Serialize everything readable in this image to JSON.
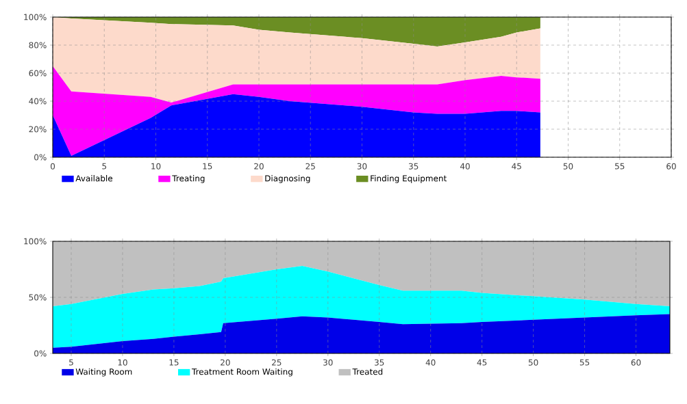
{
  "chart_data": [
    {
      "type": "area",
      "stacked": true,
      "x": [
        0,
        1.8,
        9.5,
        11.5,
        17.5,
        20,
        23,
        30,
        35,
        37.3,
        40,
        43.5,
        45,
        47.3
      ],
      "xlim": [
        0,
        60
      ],
      "xticks": [
        0,
        5,
        10,
        15,
        20,
        25,
        30,
        35,
        40,
        45,
        50,
        55,
        60
      ],
      "ylim": [
        0,
        100
      ],
      "yticks": [
        {
          "value": 0,
          "label": "0%"
        },
        {
          "value": 20,
          "label": "20%"
        },
        {
          "value": 40,
          "label": "40%"
        },
        {
          "value": 60,
          "label": "60%"
        },
        {
          "value": 80,
          "label": "80%"
        },
        {
          "value": 100,
          "label": "100%"
        }
      ],
      "grid": true,
      "legend": "bottom",
      "series": [
        {
          "name": "Available",
          "color": "#0000ff",
          "values": [
            30,
            1,
            28,
            37,
            45,
            43,
            40,
            36,
            32,
            31,
            31,
            33,
            33,
            32
          ]
        },
        {
          "name": "Treating",
          "color": "#ff00ff",
          "values": [
            35,
            46,
            15,
            2,
            7,
            9,
            12,
            16,
            20,
            21,
            24,
            25,
            24,
            24
          ]
        },
        {
          "name": "Diagnosing",
          "color": "#fddacb",
          "values": [
            35,
            52,
            53,
            56,
            42,
            39,
            37,
            33,
            29,
            27,
            27,
            28,
            32,
            36
          ]
        },
        {
          "name": "Finding Equipment",
          "color": "#6b8e23",
          "values": [
            0,
            1,
            4,
            5,
            6,
            9,
            11,
            15,
            19,
            21,
            18,
            14,
            11,
            8
          ]
        }
      ]
    },
    {
      "type": "area",
      "stacked": true,
      "x": [
        3.2,
        5,
        10,
        13,
        15,
        17.5,
        19.6,
        19.8,
        25,
        27.5,
        30,
        35,
        37.3,
        43,
        45,
        50,
        55,
        60,
        63.3
      ],
      "xlim": [
        3.2,
        63.3
      ],
      "xticks": [
        5,
        10,
        15,
        20,
        25,
        30,
        35,
        40,
        45,
        50,
        55,
        60
      ],
      "ylim": [
        0,
        100
      ],
      "yticks": [
        {
          "value": 0,
          "label": "0%"
        },
        {
          "value": 50,
          "label": "50%"
        },
        {
          "value": 100,
          "label": "100%"
        }
      ],
      "grid": true,
      "legend": "bottom",
      "series": [
        {
          "name": "Waiting Room",
          "color": "#0000e8",
          "values": [
            5,
            6,
            11,
            13,
            15,
            17,
            19,
            27,
            31,
            33,
            32,
            28,
            26,
            27,
            28,
            30,
            32,
            34,
            35
          ]
        },
        {
          "name": "Treatment Room Waiting",
          "color": "#00ffff",
          "values": [
            37,
            38,
            42,
            44,
            43,
            43,
            45,
            40,
            44,
            45,
            41,
            33,
            30,
            29,
            26,
            21,
            16,
            10,
            7
          ]
        },
        {
          "name": "Treated",
          "color": "#c0c0c0",
          "values": [
            58,
            56,
            47,
            43,
            42,
            40,
            36,
            33,
            25,
            22,
            27,
            39,
            44,
            44,
            46,
            49,
            52,
            56,
            58
          ]
        }
      ]
    }
  ]
}
